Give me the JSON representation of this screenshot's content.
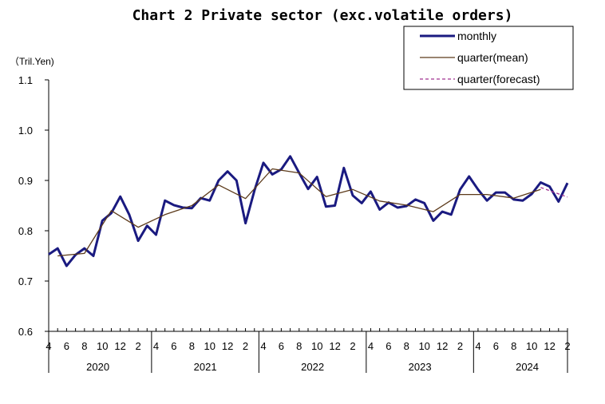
{
  "chart_data": {
    "type": "line",
    "title": "Chart 2 Private sector (exc.volatile orders)",
    "ylabel": "（Tril.Yen)",
    "ylim": [
      0.6,
      1.1
    ],
    "yticks": [
      "0.6",
      "0.7",
      "0.8",
      "0.9",
      "1.0",
      "1.1"
    ],
    "ytick_values": [
      0.6,
      0.7,
      0.8,
      0.9,
      1.0,
      1.1
    ],
    "month_labels": [
      "4",
      "6",
      "8",
      "10",
      "12",
      "2",
      "4",
      "6",
      "8",
      "10",
      "12",
      "2",
      "4",
      "6",
      "8",
      "10",
      "12",
      "2",
      "4",
      "6",
      "8",
      "10",
      "12",
      "2",
      "4",
      "6",
      "8",
      "10",
      "12",
      "2"
    ],
    "year_labels": [
      "2020",
      "2021",
      "2022",
      "2023",
      "2024"
    ],
    "legend_position": "top-right",
    "series": [
      {
        "name": "monthly",
        "color": "#1a1a80",
        "style": "solid-thick",
        "start_index": 0,
        "values": [
          0.753,
          0.765,
          0.73,
          0.752,
          0.765,
          0.75,
          0.82,
          0.835,
          0.868,
          0.832,
          0.78,
          0.81,
          0.792,
          0.86,
          0.851,
          0.846,
          0.845,
          0.865,
          0.86,
          0.9,
          0.918,
          0.9,
          0.815,
          0.88,
          0.935,
          0.912,
          0.922,
          0.948,
          0.915,
          0.883,
          0.907,
          0.848,
          0.85,
          0.925,
          0.87,
          0.855,
          0.878,
          0.842,
          0.856,
          0.846,
          0.849,
          0.862,
          0.855,
          0.82,
          0.838,
          0.832,
          0.882,
          0.908,
          0.882,
          0.86,
          0.876,
          0.876,
          0.862,
          0.86,
          0.873,
          0.896,
          0.888,
          0.858,
          0.895
        ]
      },
      {
        "name": "quarter(mean)",
        "color": "#5c3a1a",
        "style": "solid-thin",
        "start_index": 1,
        "step": 3,
        "values": [
          0.75,
          0.755,
          0.84,
          0.807,
          0.832,
          0.85,
          0.891,
          0.864,
          0.923,
          0.915,
          0.868,
          0.882,
          0.859,
          0.851,
          0.838,
          0.872,
          0.872,
          0.865,
          0.882
        ]
      },
      {
        "name": "quarter(forecast)",
        "color": "#a03090",
        "style": "dashed",
        "start_index": 55,
        "step": 3,
        "values": [
          0.886,
          0.867
        ]
      }
    ]
  }
}
